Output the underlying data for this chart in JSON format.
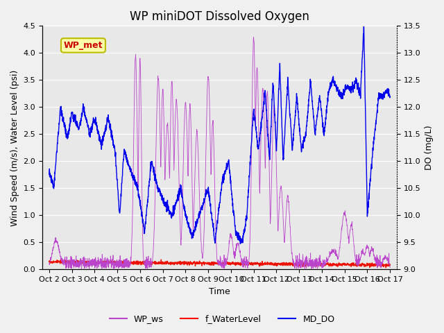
{
  "title": "WP miniDOT Dissolved Oxygen",
  "ylabel_left": "Wind Speed (m/s), Water Level (psi)",
  "ylabel_right": "DO (mg/L)",
  "xlabel": "Time",
  "ylim_left": [
    0.0,
    4.5
  ],
  "ylim_right": [
    9.0,
    13.5
  ],
  "yticks_left": [
    0.0,
    0.5,
    1.0,
    1.5,
    2.0,
    2.5,
    3.0,
    3.5,
    4.0,
    4.5
  ],
  "yticks_right": [
    9.0,
    9.5,
    10.0,
    10.5,
    11.0,
    11.5,
    12.0,
    12.5,
    13.0,
    13.5
  ],
  "xtick_labels": [
    "Oct 2",
    "Oct 3",
    "Oct 4",
    "Oct 5",
    "Oct 6",
    "Oct 7",
    "Oct 8",
    "Oct 9",
    "Oct 10",
    "Oct 11",
    "Oct 12",
    "Oct 13",
    "Oct 14",
    "Oct 15",
    "Oct 16",
    "Oct 17"
  ],
  "legend_labels": [
    "WP_ws",
    "f_WaterLevel",
    "MD_DO"
  ],
  "legend_colors": [
    "#BB44CC",
    "#FF0000",
    "#0000EE"
  ],
  "wp_ws_color": "#BB44CC",
  "f_wl_color": "#EE1100",
  "md_do_color": "#0000EE",
  "annotation_text": "WP_met",
  "annotation_text_color": "#CC0000",
  "annotation_box_color": "#FFFFAA",
  "annotation_box_edge": "#BBBB00",
  "background_color": "#f0f0f0",
  "plot_bg_color": "#e8e8e8",
  "grid_color": "#ffffff",
  "title_fontsize": 12,
  "axis_fontsize": 9,
  "tick_fontsize": 8
}
